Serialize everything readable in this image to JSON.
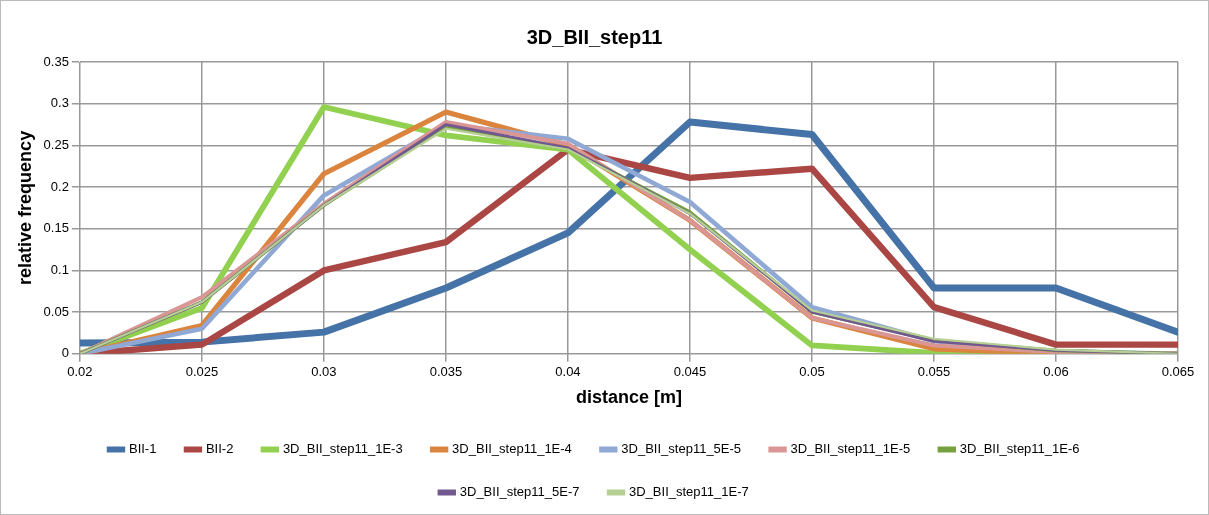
{
  "chart_data": {
    "type": "line",
    "title": "3D_BII_step11",
    "xlabel": "distance [m]",
    "ylabel": "relative frequency",
    "x": [
      0.02,
      0.025,
      0.03,
      0.035,
      0.04,
      0.045,
      0.05,
      0.055,
      0.06,
      0.065
    ],
    "xlim": [
      0.02,
      0.065
    ],
    "xticks": [
      0.02,
      0.025,
      0.03,
      0.035,
      0.04,
      0.045,
      0.05,
      0.055,
      0.06,
      0.065
    ],
    "ylim": [
      0,
      0.35
    ],
    "yticks": [
      0,
      0.05,
      0.1,
      0.15,
      0.2,
      0.25,
      0.3,
      0.35
    ],
    "grid": true,
    "legend": "bottom",
    "marker": "none",
    "line_style": "solid",
    "series": [
      {
        "name": "BII-1",
        "color": "#4572a7",
        "values": [
          0.013,
          0.014,
          0.026,
          0.079,
          0.145,
          0.278,
          0.263,
          0.079,
          0.079,
          0.026
        ]
      },
      {
        "name": "BII-2",
        "color": "#aa4643",
        "values": [
          0,
          0.011,
          0.1,
          0.134,
          0.245,
          0.211,
          0.222,
          0.056,
          0.011,
          0.011
        ]
      },
      {
        "name": "3D_BII_step11_1E-3",
        "color": "#92d050",
        "values": [
          0,
          0.055,
          0.296,
          0.262,
          0.245,
          0.125,
          0.01,
          0.001,
          0,
          0
        ]
      },
      {
        "name": "3D_BII_step11_1E-4",
        "color": "#db843d",
        "values": [
          0,
          0.034,
          0.216,
          0.29,
          0.25,
          0.16,
          0.043,
          0.006,
          0,
          0
        ]
      },
      {
        "name": "3D_BII_step11_5E-5",
        "color": "#8fa8d4",
        "values": [
          0,
          0.03,
          0.19,
          0.275,
          0.258,
          0.182,
          0.056,
          0.015,
          0.003,
          0
        ]
      },
      {
        "name": "3D_BII_step11_1E-5",
        "color": "#d99694",
        "values": [
          0,
          0.068,
          0.18,
          0.278,
          0.252,
          0.16,
          0.043,
          0.01,
          0.002,
          0
        ]
      },
      {
        "name": "3D_BII_step11_1E-6",
        "color": "#77a03f",
        "values": [
          0,
          0.062,
          0.178,
          0.272,
          0.246,
          0.17,
          0.05,
          0.016,
          0.004,
          0
        ]
      },
      {
        "name": "3D_BII_step11_5E-7",
        "color": "#71588f",
        "values": [
          0,
          0.062,
          0.178,
          0.275,
          0.247,
          0.168,
          0.05,
          0.015,
          0.004,
          0
        ]
      },
      {
        "name": "3D_BII_step11_1E-7",
        "color": "#b6cf94",
        "values": [
          0,
          0.062,
          0.178,
          0.27,
          0.245,
          0.168,
          0.052,
          0.018,
          0.005,
          0
        ]
      }
    ]
  }
}
